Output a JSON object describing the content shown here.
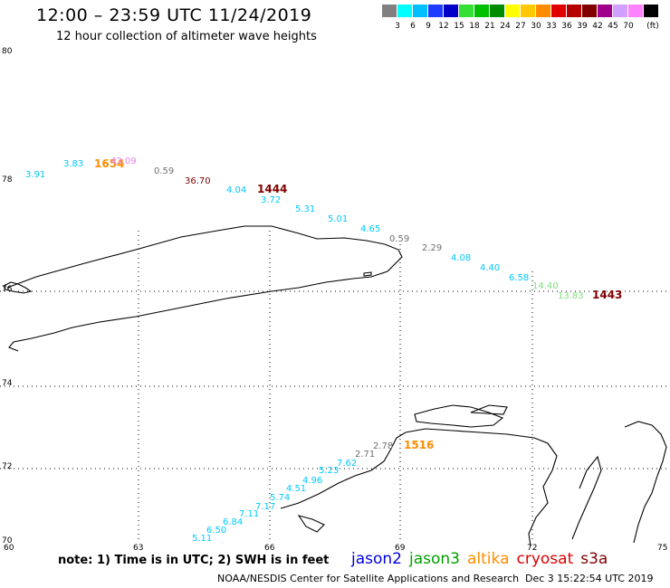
{
  "header": {
    "title": "12:00 – 23:59 UTC 11/24/2019",
    "subtitle": "12 hour collection of altimeter wave heights"
  },
  "legend": {
    "unit": "(ft)",
    "bins": [
      {
        "label": "",
        "color": "#808080"
      },
      {
        "label": "3",
        "color": "#00ffff"
      },
      {
        "label": "6",
        "color": "#00bfff"
      },
      {
        "label": "9",
        "color": "#1e3cff"
      },
      {
        "label": "12",
        "color": "#0000c8"
      },
      {
        "label": "15",
        "color": "#33e033"
      },
      {
        "label": "18",
        "color": "#00c000"
      },
      {
        "label": "21",
        "color": "#008c00"
      },
      {
        "label": "24",
        "color": "#ffff00"
      },
      {
        "label": "27",
        "color": "#ffc800"
      },
      {
        "label": "30",
        "color": "#ff8c00"
      },
      {
        "label": "33",
        "color": "#e00000"
      },
      {
        "label": "36",
        "color": "#b40000"
      },
      {
        "label": "39",
        "color": "#800000"
      },
      {
        "label": "42",
        "color": "#a0008c"
      },
      {
        "label": "45",
        "color": "#d2a0ff"
      },
      {
        "label": "70",
        "color": "#ff82ff"
      },
      {
        "label": "",
        "color": "#000000"
      }
    ]
  },
  "axes": {
    "lat_labels": [
      "80",
      "78",
      "76",
      "74",
      "72",
      "70"
    ],
    "lon_labels": [
      "60",
      "63",
      "66",
      "69",
      "72",
      "75"
    ]
  },
  "observations": [
    {
      "text": "3.91",
      "color": "#00c8ff"
    },
    {
      "text": "3.83",
      "color": "#00c8ff"
    },
    {
      "text": "1654",
      "color": "#ff8c00",
      "pass": true
    },
    {
      "text": "43.09",
      "color": "#e682e6"
    },
    {
      "text": "0.59",
      "color": "#707070"
    },
    {
      "text": "36.70",
      "color": "#800000"
    },
    {
      "text": "4.04",
      "color": "#00c8ff"
    },
    {
      "text": "1444",
      "color": "#800000",
      "pass": true
    },
    {
      "text": "3.72",
      "color": "#00c8ff"
    },
    {
      "text": "5.31",
      "color": "#00c8ff"
    },
    {
      "text": "5.01",
      "color": "#00c8ff"
    },
    {
      "text": "4.65",
      "color": "#00c8ff"
    },
    {
      "text": "0.59",
      "color": "#707070"
    },
    {
      "text": "2.29",
      "color": "#707070"
    },
    {
      "text": "4.08",
      "color": "#00c8ff"
    },
    {
      "text": "4.40",
      "color": "#00c8ff"
    },
    {
      "text": "6.58",
      "color": "#00c8ff"
    },
    {
      "text": "14.40",
      "color": "#7ee07e"
    },
    {
      "text": "13.83",
      "color": "#7ee07e"
    },
    {
      "text": "1443",
      "color": "#800000",
      "pass": true
    },
    {
      "text": "2.78",
      "color": "#707070"
    },
    {
      "text": "1516",
      "color": "#ff8c00",
      "pass": true
    },
    {
      "text": "2.71",
      "color": "#707070"
    },
    {
      "text": "7.62",
      "color": "#00c8ff"
    },
    {
      "text": "5.23",
      "color": "#00c8ff"
    },
    {
      "text": "4.96",
      "color": "#00c8ff"
    },
    {
      "text": "4.51",
      "color": "#00c8ff"
    },
    {
      "text": "5.74",
      "color": "#00c8ff"
    },
    {
      "text": "7.17",
      "color": "#00c8ff"
    },
    {
      "text": "7.11",
      "color": "#00c8ff"
    },
    {
      "text": "6.84",
      "color": "#00c8ff"
    },
    {
      "text": "6.50",
      "color": "#00c8ff"
    },
    {
      "text": "5.11",
      "color": "#00c8ff"
    }
  ],
  "footer": {
    "note": "note: 1) Time is in UTC; 2) SWH is in feet",
    "satellites": [
      {
        "name": "jason2",
        "color": "#0000e0"
      },
      {
        "name": "jason3",
        "color": "#00a000"
      },
      {
        "name": "altika",
        "color": "#ff8c00"
      },
      {
        "name": "cryosat",
        "color": "#e00000"
      },
      {
        "name": "s3a",
        "color": "#800000"
      }
    ],
    "credit": "NOAA/NESDIS Center for Satellite Applications and Research",
    "timestamp": "Dec  3 15:22:54 UTC 2019"
  }
}
